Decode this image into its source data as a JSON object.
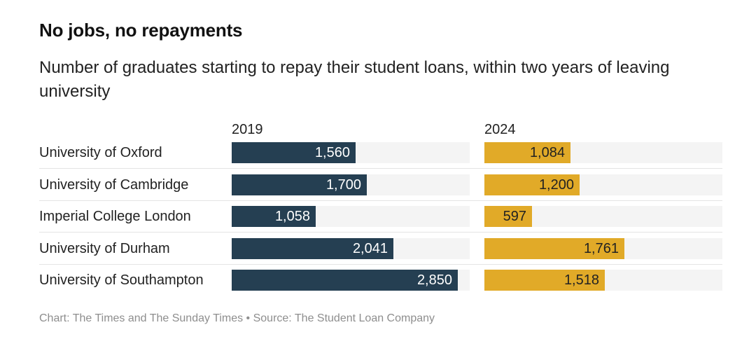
{
  "header": {
    "title": "No jobs, no repayments",
    "subtitle": "Number of graduates starting to repay their student loans, within two years of leaving university"
  },
  "footer": {
    "credit": "Chart: The Times and The Sunday Times • Source: The Student Loan Company"
  },
  "colors": {
    "series_2019": "#253f52",
    "series_2024": "#e1aa28",
    "track": "#f4f4f4",
    "label_on_dark": "#ffffff",
    "label_on_light": "#222222"
  },
  "chart_data": {
    "type": "bar",
    "orientation": "horizontal",
    "categories": [
      "University of Oxford",
      "University of Cambridge",
      "Imperial College London",
      "University of Durham",
      "University of Southampton"
    ],
    "series": [
      {
        "name": "2019",
        "values": [
          1560,
          1700,
          1058,
          2041,
          2850
        ],
        "labels": [
          "1,560",
          "1,700",
          "1,058",
          "2,041",
          "2,850"
        ]
      },
      {
        "name": "2024",
        "values": [
          1084,
          1200,
          597,
          1761,
          1518
        ],
        "labels": [
          "1,084",
          "1,200",
          "597",
          "1,761",
          "1,518"
        ]
      }
    ],
    "xlim": [
      0,
      3000
    ],
    "grid": false,
    "legend": "none",
    "data_labels": "inside-end"
  }
}
